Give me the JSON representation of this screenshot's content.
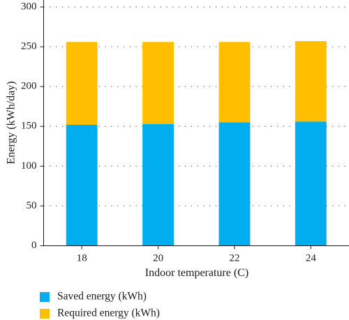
{
  "chart_data": {
    "type": "bar",
    "stacked": true,
    "categories": [
      "18",
      "20",
      "22",
      "24"
    ],
    "series": [
      {
        "name": "Saved energy (kWh)",
        "values": [
          152,
          153,
          155,
          156
        ],
        "color": "#00aeef"
      },
      {
        "name": "Required energy (kWh)",
        "values": [
          104,
          103,
          101,
          101
        ],
        "color": "#ffbf00"
      }
    ],
    "xlabel": "Indoor temperature (C)",
    "ylabel": "Energy (kWh/day)",
    "ylim": [
      0,
      300
    ],
    "yticks": [
      "0",
      "50",
      "100",
      "150",
      "200",
      "250",
      "300"
    ],
    "grid": true,
    "legend_position": "bottom-left"
  }
}
